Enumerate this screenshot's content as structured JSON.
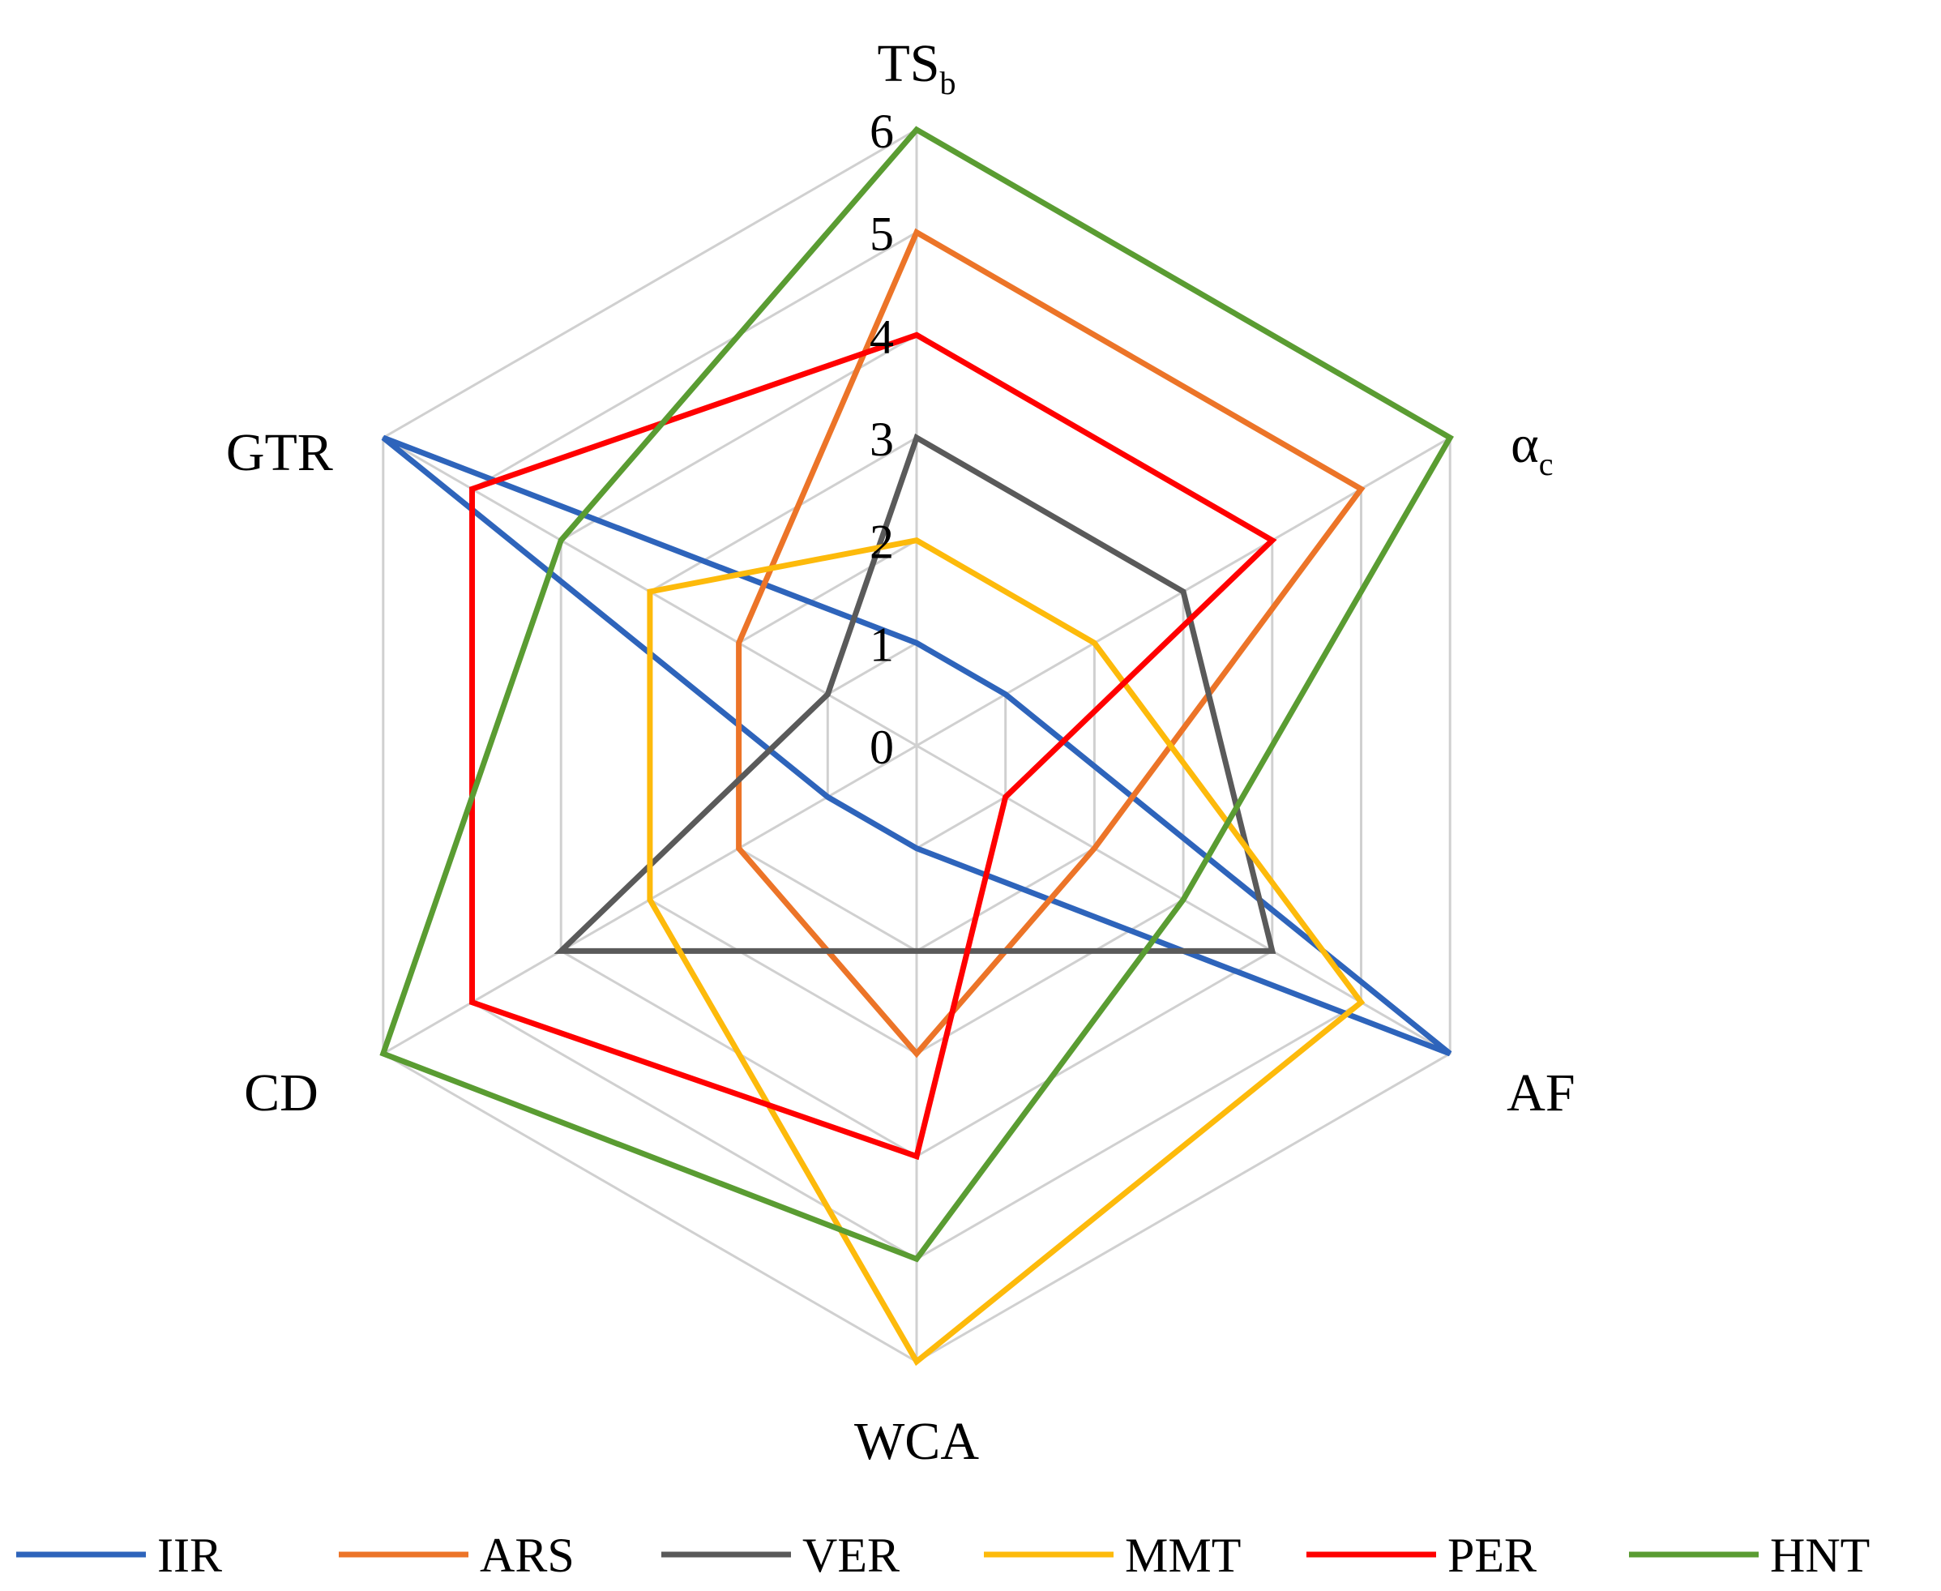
{
  "chart_data": {
    "type": "radar",
    "axes": [
      {
        "key": "TSb",
        "label": "TS",
        "sub": "b"
      },
      {
        "key": "ac",
        "label": "α",
        "sub": "c"
      },
      {
        "key": "AF",
        "label": "AF",
        "sub": ""
      },
      {
        "key": "WCA",
        "label": "WCA",
        "sub": ""
      },
      {
        "key": "CD",
        "label": "CD",
        "sub": ""
      },
      {
        "key": "GTR",
        "label": "GTR",
        "sub": ""
      }
    ],
    "rlim": [
      0,
      6
    ],
    "ticks": [
      0,
      1,
      2,
      3,
      4,
      5,
      6
    ],
    "grid": true,
    "legend_position": "bottom",
    "series": [
      {
        "name": "IIR",
        "color": "#2e64bb",
        "values": [
          1,
          1,
          6,
          1,
          1,
          6
        ]
      },
      {
        "name": "ARS",
        "color": "#ec7428",
        "values": [
          5,
          5,
          2,
          3,
          2,
          2
        ]
      },
      {
        "name": "VER",
        "color": "#5a5a5a",
        "values": [
          3,
          3,
          4,
          2,
          4,
          1
        ]
      },
      {
        "name": "MMT",
        "color": "#fdba0b",
        "values": [
          2,
          2,
          5,
          6,
          3,
          3
        ]
      },
      {
        "name": "PER",
        "color": "#ff0000",
        "values": [
          4,
          4,
          1,
          4,
          5,
          5
        ]
      },
      {
        "name": "HNT",
        "color": "#5a9c32",
        "values": [
          6,
          6,
          3,
          5,
          6,
          4
        ]
      }
    ]
  }
}
